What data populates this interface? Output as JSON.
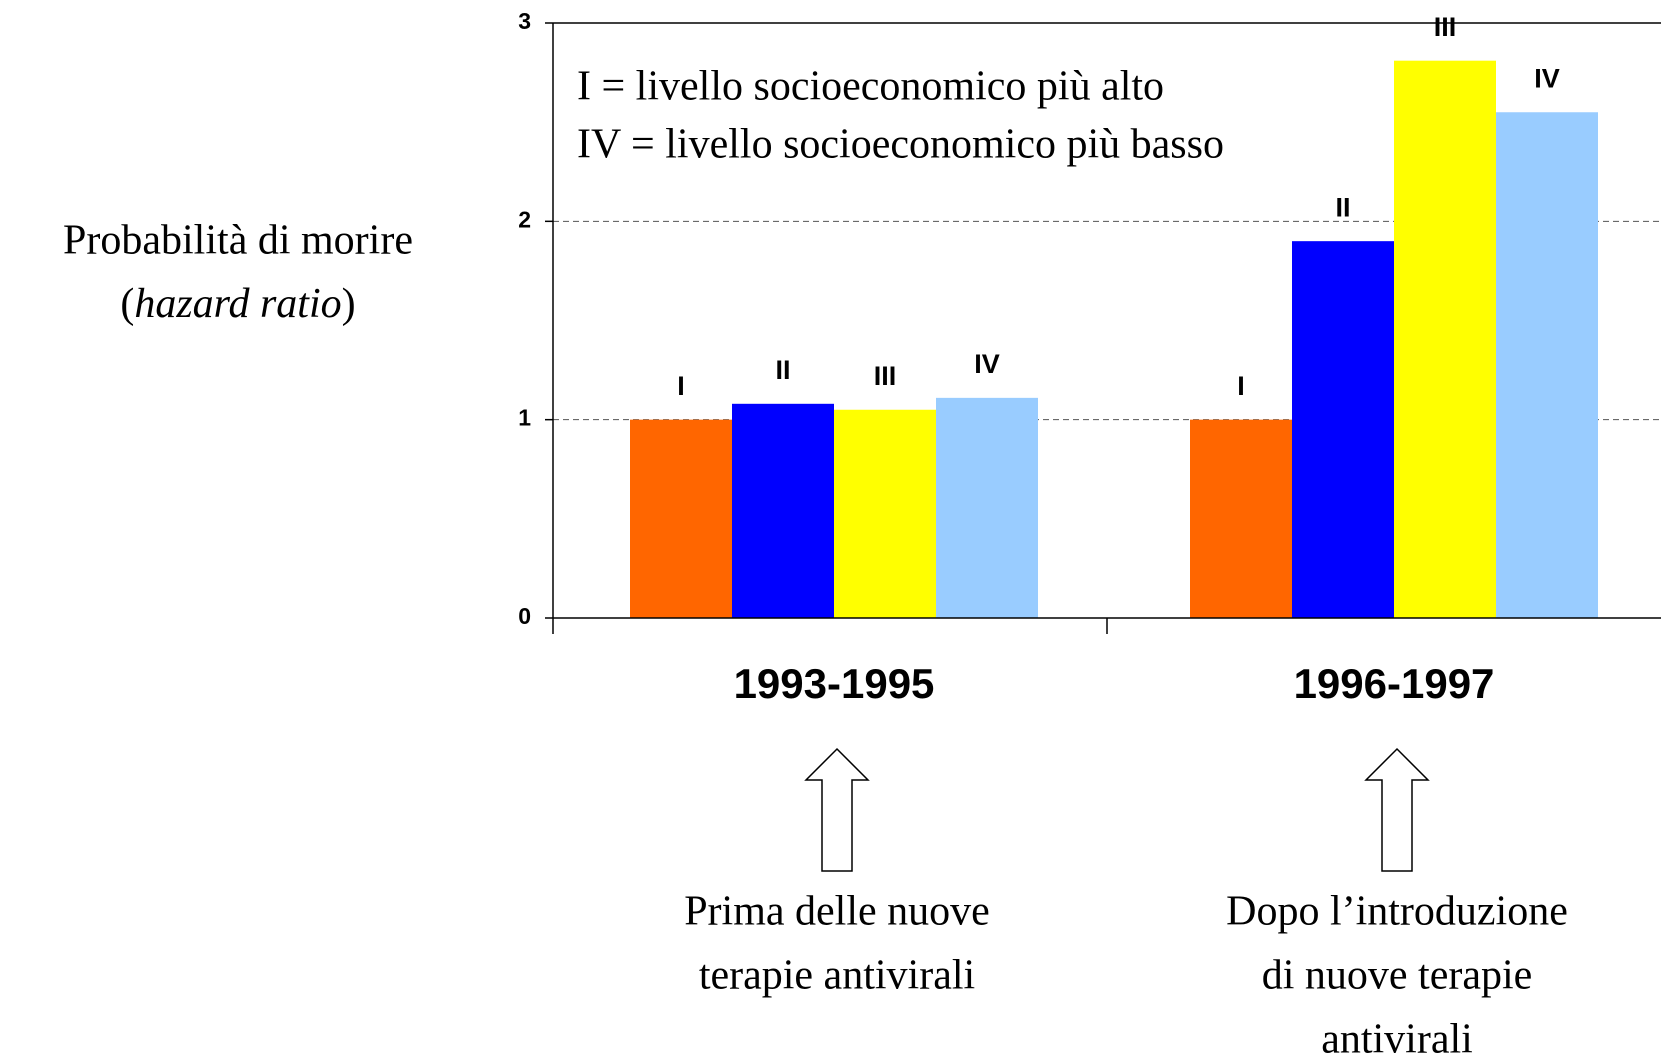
{
  "chart_data": {
    "type": "bar",
    "categories": [
      "1993-1995",
      "1996-1997"
    ],
    "series": [
      {
        "name": "I",
        "color": "#ff6600",
        "values": [
          1.0,
          1.0
        ]
      },
      {
        "name": "II",
        "color": "#0000ff",
        "values": [
          1.08,
          1.9
        ]
      },
      {
        "name": "III",
        "color": "#ffff00",
        "values": [
          1.05,
          2.81
        ]
      },
      {
        "name": "IV",
        "color": "#99ccff",
        "values": [
          1.11,
          2.55
        ]
      }
    ],
    "ylim": [
      0,
      3
    ],
    "yticks": [
      0,
      1,
      2,
      3
    ],
    "grid": true,
    "ylabel": {
      "line1": "Probabilità di morire",
      "line2": [
        "(",
        "hazard ratio",
        ")"
      ]
    },
    "legend_text": [
      "I = livello socioeconomico più alto",
      "IV = livello socioeconomico più basso"
    ],
    "annotations": [
      {
        "text": [
          "Prima delle nuove",
          "terapie antivirali"
        ]
      },
      {
        "text": [
          "Dopo l’introduzione",
          "di nuove terapie",
          "antivirali"
        ]
      }
    ]
  }
}
